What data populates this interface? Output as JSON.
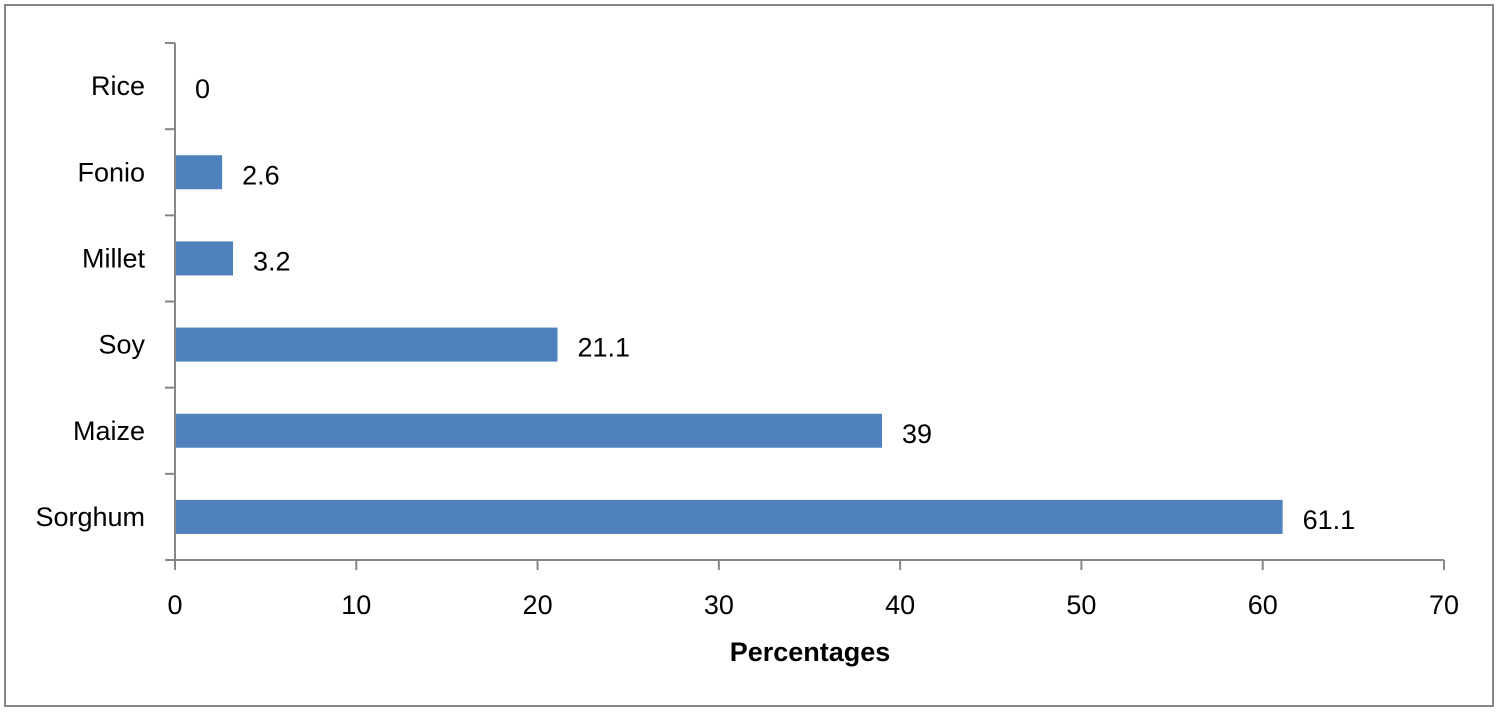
{
  "chart_data": {
    "type": "bar",
    "orientation": "horizontal",
    "categories": [
      "Sorghum",
      "Maize",
      "Soy",
      "Millet",
      "Fonio",
      "Rice"
    ],
    "values": [
      61.1,
      39,
      21.1,
      3.2,
      2.6,
      0
    ],
    "data_labels": [
      "61.1",
      "39",
      "21.1",
      "3.2",
      "2.6",
      "0"
    ],
    "xlabel": "Percentages",
    "ylabel": "",
    "xlim": [
      0,
      70
    ],
    "x_ticks": [
      "0",
      "10",
      "20",
      "30",
      "40",
      "50",
      "60",
      "70"
    ],
    "grid": false,
    "legend": "none",
    "bar_color": "#4f81bd"
  }
}
